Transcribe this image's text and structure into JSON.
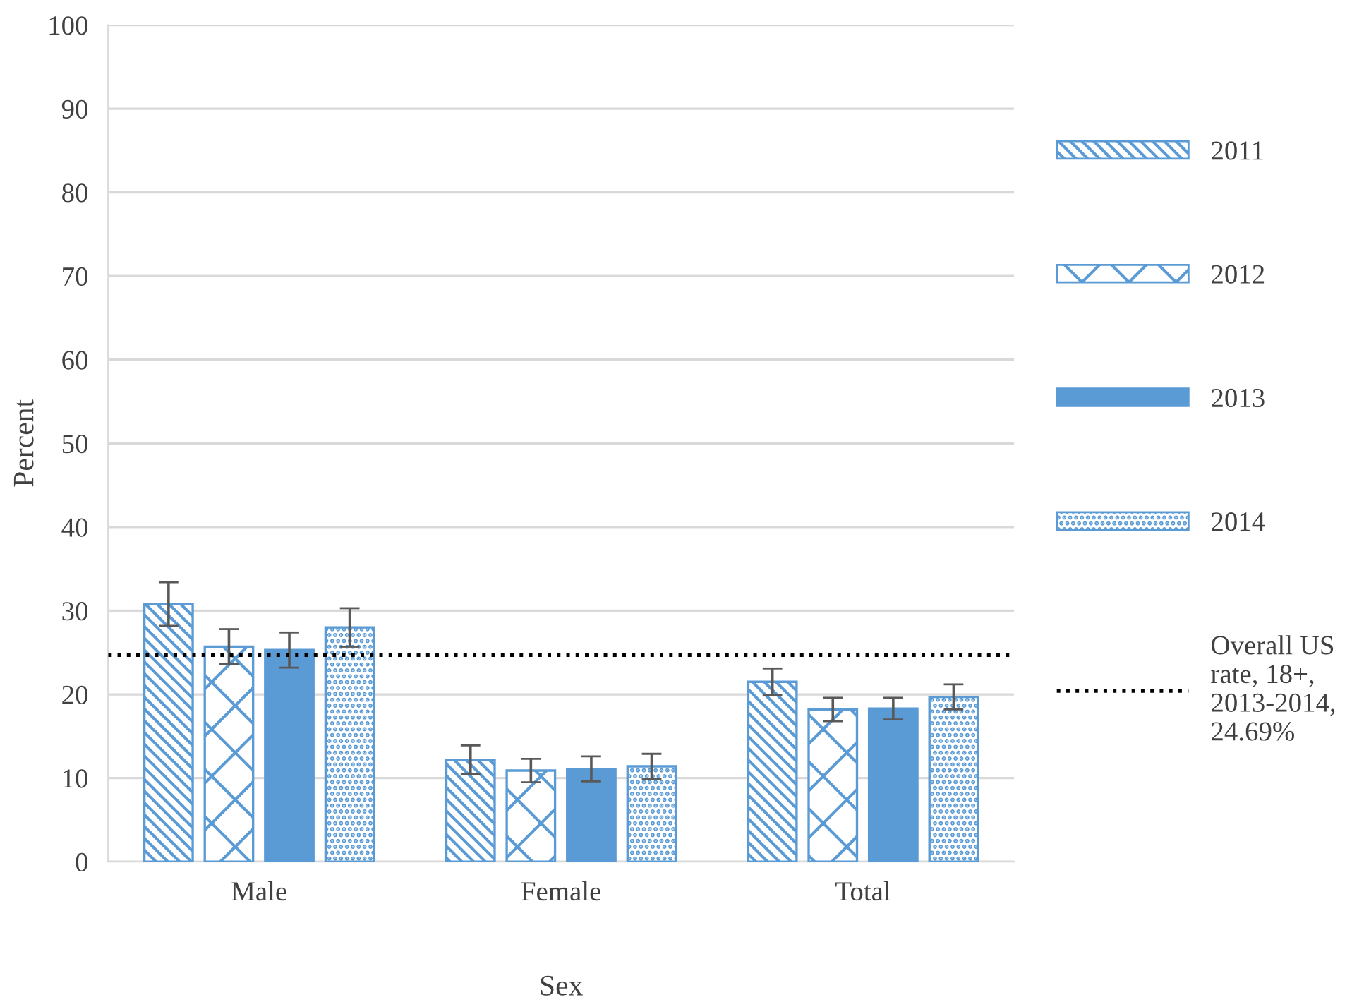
{
  "chart_data": {
    "type": "bar",
    "xlabel": "Sex",
    "ylabel": "Percent",
    "categories": [
      "Male",
      "Female",
      "Total"
    ],
    "series": [
      {
        "name": "2011",
        "color": "#5b9bd5",
        "values": [
          30.8,
          12.2,
          21.5
        ],
        "errors": [
          2.6,
          1.7,
          1.6
        ]
      },
      {
        "name": "2012",
        "color": "#5b9bd5",
        "values": [
          25.7,
          10.9,
          18.2
        ],
        "errors": [
          2.1,
          1.4,
          1.4
        ]
      },
      {
        "name": "2013",
        "color": "#5b9bd5",
        "values": [
          25.3,
          11.1,
          18.3
        ],
        "errors": [
          2.1,
          1.5,
          1.3
        ]
      },
      {
        "name": "2014",
        "color": "#5b9bd5",
        "values": [
          28.0,
          11.4,
          19.7
        ],
        "errors": [
          2.3,
          1.5,
          1.5
        ]
      }
    ],
    "ref_lines": [
      {
        "axis": "y",
        "value": 24.69,
        "label": "Overall US rate, 18+, 2013-2014, 24.69%",
        "color": "#000000",
        "line_style": "dotted"
      }
    ],
    "ylim": [
      0,
      100
    ],
    "yticks": [
      0,
      10,
      20,
      30,
      40,
      50,
      60,
      70,
      80,
      90,
      100
    ],
    "grid": "y",
    "legend": "right"
  }
}
